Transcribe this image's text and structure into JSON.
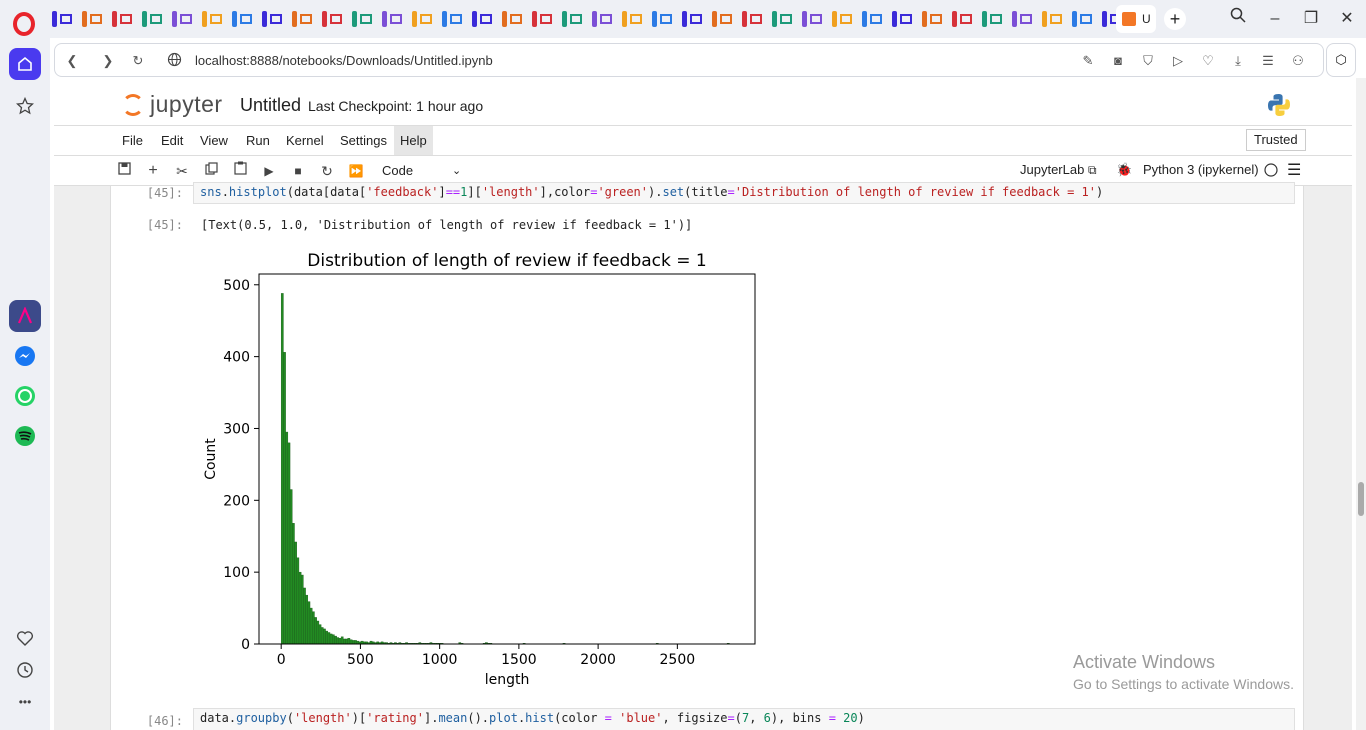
{
  "browser": {
    "active_tab_label": "U",
    "new_tab": "+",
    "url": "localhost:8888/notebooks/Downloads/Untitled.ipynb",
    "window": {
      "minimize": "–",
      "restore": "❐",
      "close": "✕"
    }
  },
  "sidebar": {
    "apps": [
      "Aria",
      "Messenger",
      "WhatsApp",
      "Spotify"
    ],
    "more": "•••"
  },
  "jupyter": {
    "logo_text": "jupyter",
    "notebook_title": "Untitled",
    "checkpoint": "Last Checkpoint: 1 hour ago",
    "menu": [
      "File",
      "Edit",
      "View",
      "Run",
      "Kernel",
      "Settings",
      "Help"
    ],
    "active_menu": "Help",
    "trusted": "Trusted",
    "cell_type": "Code",
    "jupyterlab_link": "JupyterLab",
    "kernel": "Python 3 (ipykernel)"
  },
  "cells": {
    "c45_prompt": "[45]:",
    "c45_code": "sns.histplot(data[data['feedback']==1]['length'],color='green').set(title='Distribution of length of review if feedback = 1')",
    "c45_out_prompt": "[45]:",
    "c45_out_text": "[Text(0.5, 1.0, 'Distribution of length of review if feedback = 1')]",
    "c46_prompt": "[46]:",
    "c46_code": "data.groupby('length')['rating'].mean().plot.hist(color = 'blue', figsize=(7, 6), bins = 20)"
  },
  "chart_data": {
    "type": "bar",
    "title": "Distribution of length of review if feedback = 1",
    "xlabel": "length",
    "ylabel": "Count",
    "xlim": [
      -140,
      2990
    ],
    "ylim": [
      0,
      515
    ],
    "xticks": [
      0,
      500,
      1000,
      1500,
      2000,
      2500
    ],
    "yticks": [
      0,
      100,
      200,
      300,
      400,
      500
    ],
    "bin_width": 14,
    "color": "#228b22",
    "bin_starts": [
      0,
      14,
      28,
      42,
      56,
      70,
      84,
      98,
      112,
      126,
      140,
      154,
      168,
      182,
      196,
      210,
      224,
      238,
      252,
      266,
      280,
      294,
      308,
      322,
      336,
      350,
      364,
      378,
      392,
      406,
      420,
      434,
      448,
      462,
      476,
      490,
      504,
      518,
      532,
      546,
      560,
      574,
      588,
      602,
      616,
      630,
      644,
      658,
      672,
      686,
      700,
      714,
      728,
      742,
      756,
      770,
      784,
      798,
      812,
      826,
      840,
      854,
      868,
      882,
      896,
      910,
      924,
      938,
      952,
      966,
      980,
      994,
      1008,
      1120,
      1134,
      1274,
      1288,
      1302,
      1316,
      1526,
      1778,
      2366,
      2814
    ],
    "counts": [
      488,
      406,
      295,
      280,
      215,
      168,
      142,
      120,
      100,
      96,
      78,
      68,
      59,
      50,
      45,
      37,
      32,
      27,
      23,
      21,
      18,
      16,
      14,
      13,
      11,
      9,
      8,
      10,
      7,
      7,
      8,
      6,
      5,
      5,
      4,
      3,
      4,
      3,
      3,
      2,
      4,
      3,
      2,
      3,
      2,
      3,
      2,
      2,
      1,
      2,
      1,
      2,
      1,
      2,
      1,
      1,
      2,
      1,
      1,
      1,
      1,
      1,
      2,
      1,
      1,
      1,
      1,
      2,
      1,
      1,
      1,
      1,
      1,
      2,
      1,
      1,
      2,
      1,
      1,
      1,
      1,
      1,
      1
    ],
    "grid": false
  },
  "watermark": {
    "line1": "Activate Windows",
    "line2": "Go to Settings to activate Windows."
  }
}
